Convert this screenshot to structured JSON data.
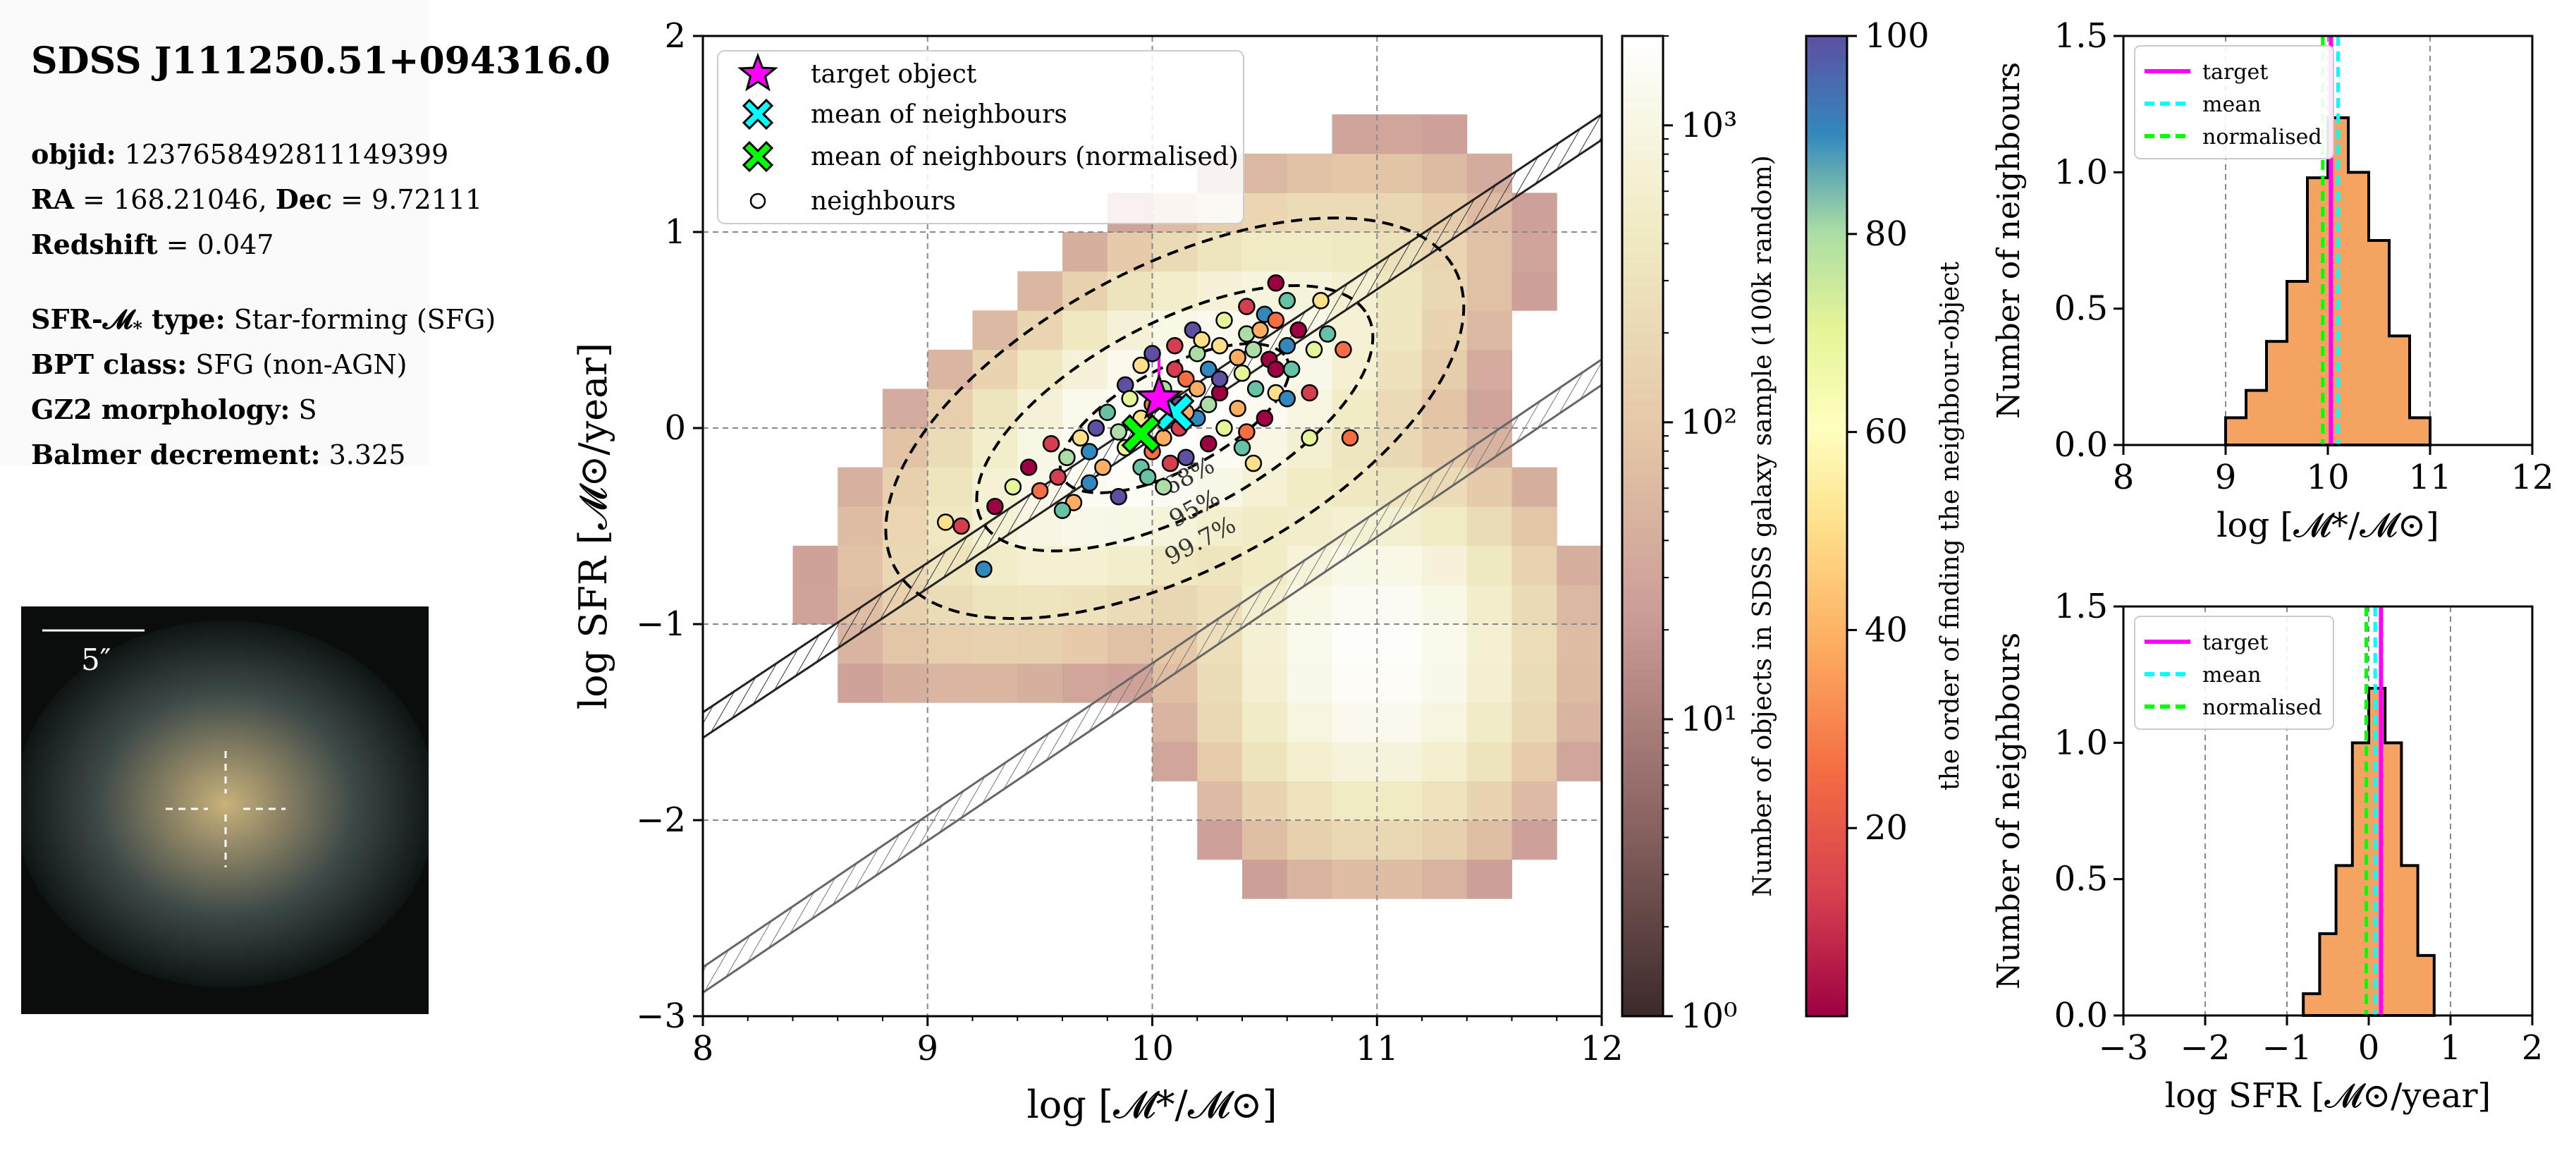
{
  "info": {
    "title": "SDSS J111250.51+094316.0",
    "objid_label": "objid:",
    "objid": "1237658492811149399",
    "ra_label": "RA",
    "ra": "= 168.21046,",
    "dec_label": "Dec",
    "dec": "= 9.72111",
    "redshift_label": "Redshift",
    "redshift": "= 0.047",
    "sfr_type_label": "SFR-𝓜",
    "sfr_type_sub": "*",
    "sfr_type_suffix": " type:",
    "sfr_type": "Star-forming (SFG)",
    "bpt_label": "BPT class:",
    "bpt": "SFG (non-AGN)",
    "gz2_label": "GZ2 morphology:",
    "gz2": "S",
    "balmer_label": "Balmer decrement:",
    "balmer": "3.325"
  },
  "thumbnail": {
    "scale_label": "5″"
  },
  "chart_data": [
    {
      "type": "scatter",
      "name": "SFR vs stellar mass",
      "xlabel": "log [𝓜*/𝓜⊙]",
      "ylabel": "log SFR [𝓜⊙/year]",
      "xlim": [
        8,
        12
      ],
      "ylim": [
        -3,
        2
      ],
      "xticks": [
        8,
        9,
        10,
        11,
        12
      ],
      "yticks": [
        -3,
        -2,
        -1,
        0,
        1,
        2
      ],
      "grid": true,
      "legend": {
        "position": "top-left",
        "entries": [
          "target object",
          "mean of neighbours",
          "mean of neighbours (normalised)",
          "neighbours"
        ]
      },
      "target": {
        "x": 10.03,
        "y": 0.15,
        "color": "#ff00ff"
      },
      "mean": {
        "x": 10.1,
        "y": 0.08,
        "color": "#00ffff"
      },
      "mean_normalised": {
        "x": 9.95,
        "y": -0.03,
        "color": "#00ff00"
      },
      "contour_labels": [
        "68%",
        "95%",
        "99.7%"
      ],
      "main_sequence_lines": [
        {
          "x": [
            8,
            12
          ],
          "y": [
            -1.45,
            1.6
          ]
        },
        {
          "x": [
            8,
            12
          ],
          "y": [
            -2.75,
            0.35
          ]
        }
      ],
      "density_colorbar": {
        "label": "Number of objects in SDSS galaxy sample (100k random)",
        "ticks": [
          "10⁰",
          "10¹",
          "10²",
          "10³"
        ],
        "range": [
          1,
          2000
        ],
        "scale": "log"
      },
      "order_colorbar": {
        "label": "the order of finding the neighbour-object",
        "ticks": [
          20,
          40,
          60,
          80,
          100
        ],
        "range": [
          1,
          100
        ]
      },
      "neighbours": [
        [
          10.55,
          0.74
        ],
        [
          10.6,
          0.65
        ],
        [
          10.75,
          0.65
        ],
        [
          10.42,
          0.62
        ],
        [
          10.5,
          0.58
        ],
        [
          10.32,
          0.55
        ],
        [
          10.55,
          0.55
        ],
        [
          10.18,
          0.5
        ],
        [
          10.42,
          0.48
        ],
        [
          10.48,
          0.5
        ],
        [
          10.65,
          0.5
        ],
        [
          10.78,
          0.48
        ],
        [
          10.3,
          0.42
        ],
        [
          10.1,
          0.42
        ],
        [
          10.6,
          0.42
        ],
        [
          10.72,
          0.4
        ],
        [
          10.85,
          0.4
        ],
        [
          10.0,
          0.38
        ],
        [
          10.2,
          0.38
        ],
        [
          10.38,
          0.36
        ],
        [
          10.52,
          0.35
        ],
        [
          10.62,
          0.3
        ],
        [
          9.95,
          0.32
        ],
        [
          10.1,
          0.3
        ],
        [
          10.25,
          0.3
        ],
        [
          10.4,
          0.28
        ],
        [
          10.15,
          0.25
        ],
        [
          9.88,
          0.22
        ],
        [
          10.05,
          0.2
        ],
        [
          10.2,
          0.2
        ],
        [
          10.3,
          0.18
        ],
        [
          10.46,
          0.2
        ],
        [
          10.55,
          0.18
        ],
        [
          10.7,
          0.18
        ],
        [
          10.6,
          0.15
        ],
        [
          9.9,
          0.15
        ],
        [
          10.0,
          0.12
        ],
        [
          10.12,
          0.12
        ],
        [
          10.25,
          0.12
        ],
        [
          10.38,
          0.1
        ],
        [
          10.5,
          0.05
        ],
        [
          9.8,
          0.08
        ],
        [
          9.95,
          0.05
        ],
        [
          10.12,
          0.0
        ],
        [
          10.2,
          0.05
        ],
        [
          10.32,
          0.0
        ],
        [
          10.42,
          -0.02
        ],
        [
          9.75,
          0.0
        ],
        [
          9.85,
          -0.02
        ],
        [
          10.05,
          -0.05
        ],
        [
          10.25,
          -0.08
        ],
        [
          10.4,
          -0.1
        ],
        [
          9.68,
          -0.05
        ],
        [
          9.55,
          -0.08
        ],
        [
          9.72,
          -0.12
        ],
        [
          9.88,
          -0.1
        ],
        [
          10.0,
          -0.12
        ],
        [
          10.15,
          -0.15
        ],
        [
          9.62,
          -0.15
        ],
        [
          9.78,
          -0.2
        ],
        [
          9.45,
          -0.2
        ],
        [
          9.95,
          -0.2
        ],
        [
          10.45,
          -0.18
        ],
        [
          9.58,
          -0.25
        ],
        [
          9.72,
          -0.28
        ],
        [
          9.38,
          -0.3
        ],
        [
          9.5,
          -0.32
        ],
        [
          9.85,
          -0.35
        ],
        [
          10.05,
          -0.3
        ],
        [
          9.65,
          -0.38
        ],
        [
          9.3,
          -0.4
        ],
        [
          9.6,
          -0.42
        ],
        [
          9.08,
          -0.48
        ],
        [
          9.15,
          -0.5
        ],
        [
          9.25,
          -0.72
        ],
        [
          10.7,
          -0.05
        ],
        [
          10.88,
          -0.05
        ],
        [
          10.3,
          0.25
        ],
        [
          10.45,
          0.4
        ],
        [
          10.15,
          0.08
        ],
        [
          10.55,
          0.3
        ],
        [
          9.98,
          -0.25
        ],
        [
          10.22,
          0.45
        ],
        [
          10.08,
          -0.18
        ]
      ]
    },
    {
      "type": "bar",
      "name": "stellar mass histogram",
      "xlabel": "log [𝓜*/𝓜⊙]",
      "ylabel": "Number of neighbours",
      "xlim": [
        8,
        12
      ],
      "ylim": [
        0,
        1.5
      ],
      "xticks": [
        8,
        9,
        10,
        11,
        12
      ],
      "yticks": [
        "0.0",
        "0.5",
        "1.0",
        "1.5"
      ],
      "bin_edges": [
        9.0,
        9.2,
        9.4,
        9.6,
        9.8,
        10.0,
        10.2,
        10.4,
        10.6,
        10.8,
        11.0
      ],
      "values": [
        0.1,
        0.2,
        0.38,
        0.6,
        0.98,
        1.2,
        1.0,
        0.75,
        0.4,
        0.1
      ],
      "lines": {
        "target": 10.03,
        "mean": 10.1,
        "normalised": 9.95
      },
      "legend": [
        "target",
        "mean",
        "normalised"
      ]
    },
    {
      "type": "bar",
      "name": "SFR histogram",
      "xlabel": "log SFR [𝓜⊙/year]",
      "ylabel": "Number of neighbours",
      "xlim": [
        -3,
        2
      ],
      "ylim": [
        0,
        1.5
      ],
      "xticks": [
        -3,
        -2,
        -1,
        0,
        1,
        2
      ],
      "yticks": [
        "0.0",
        "0.5",
        "1.0",
        "1.5"
      ],
      "bin_edges": [
        -0.8,
        -0.6,
        -0.4,
        -0.2,
        0.0,
        0.2,
        0.4,
        0.6,
        0.8
      ],
      "values": [
        0.08,
        0.3,
        0.55,
        1.0,
        1.2,
        1.0,
        0.55,
        0.22
      ],
      "lines": {
        "target": 0.15,
        "mean": 0.08,
        "normalised": -0.03
      },
      "legend": [
        "target",
        "mean",
        "normalised"
      ]
    }
  ]
}
